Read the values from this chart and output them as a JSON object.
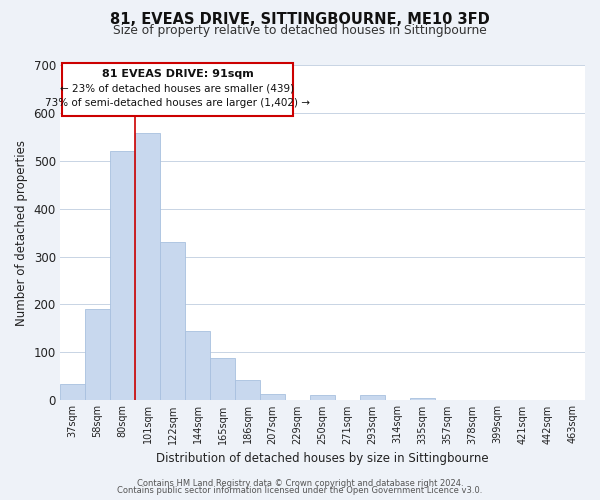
{
  "title": "81, EVEAS DRIVE, SITTINGBOURNE, ME10 3FD",
  "subtitle": "Size of property relative to detached houses in Sittingbourne",
  "xlabel": "Distribution of detached houses by size in Sittingbourne",
  "ylabel": "Number of detached properties",
  "bar_labels": [
    "37sqm",
    "58sqm",
    "80sqm",
    "101sqm",
    "122sqm",
    "144sqm",
    "165sqm",
    "186sqm",
    "207sqm",
    "229sqm",
    "250sqm",
    "271sqm",
    "293sqm",
    "314sqm",
    "335sqm",
    "357sqm",
    "378sqm",
    "399sqm",
    "421sqm",
    "442sqm",
    "463sqm"
  ],
  "bar_values": [
    33,
    190,
    520,
    558,
    330,
    145,
    87,
    41,
    13,
    0,
    11,
    0,
    10,
    0,
    4,
    0,
    0,
    0,
    0,
    0,
    0
  ],
  "bar_color": "#c8d8ee",
  "bar_edge_color": "#a8c0df",
  "vline_color": "#cc0000",
  "ylim": [
    0,
    700
  ],
  "yticks": [
    0,
    100,
    200,
    300,
    400,
    500,
    600,
    700
  ],
  "annotation_title": "81 EVEAS DRIVE: 91sqm",
  "annotation_line1": "← 23% of detached houses are smaller (439)",
  "annotation_line2": "73% of semi-detached houses are larger (1,402) →",
  "footer_line1": "Contains HM Land Registry data © Crown copyright and database right 2024.",
  "footer_line2": "Contains public sector information licensed under the Open Government Licence v3.0.",
  "background_color": "#eef2f8",
  "plot_background": "#ffffff",
  "grid_color": "#c8d4e4"
}
